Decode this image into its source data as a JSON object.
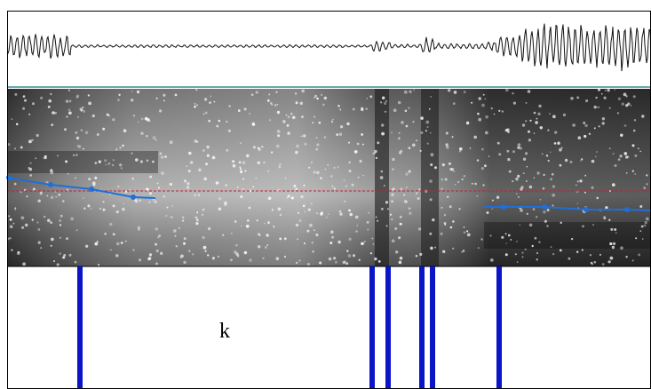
{
  "textgrid": {
    "interval_label": "k"
  }
}
